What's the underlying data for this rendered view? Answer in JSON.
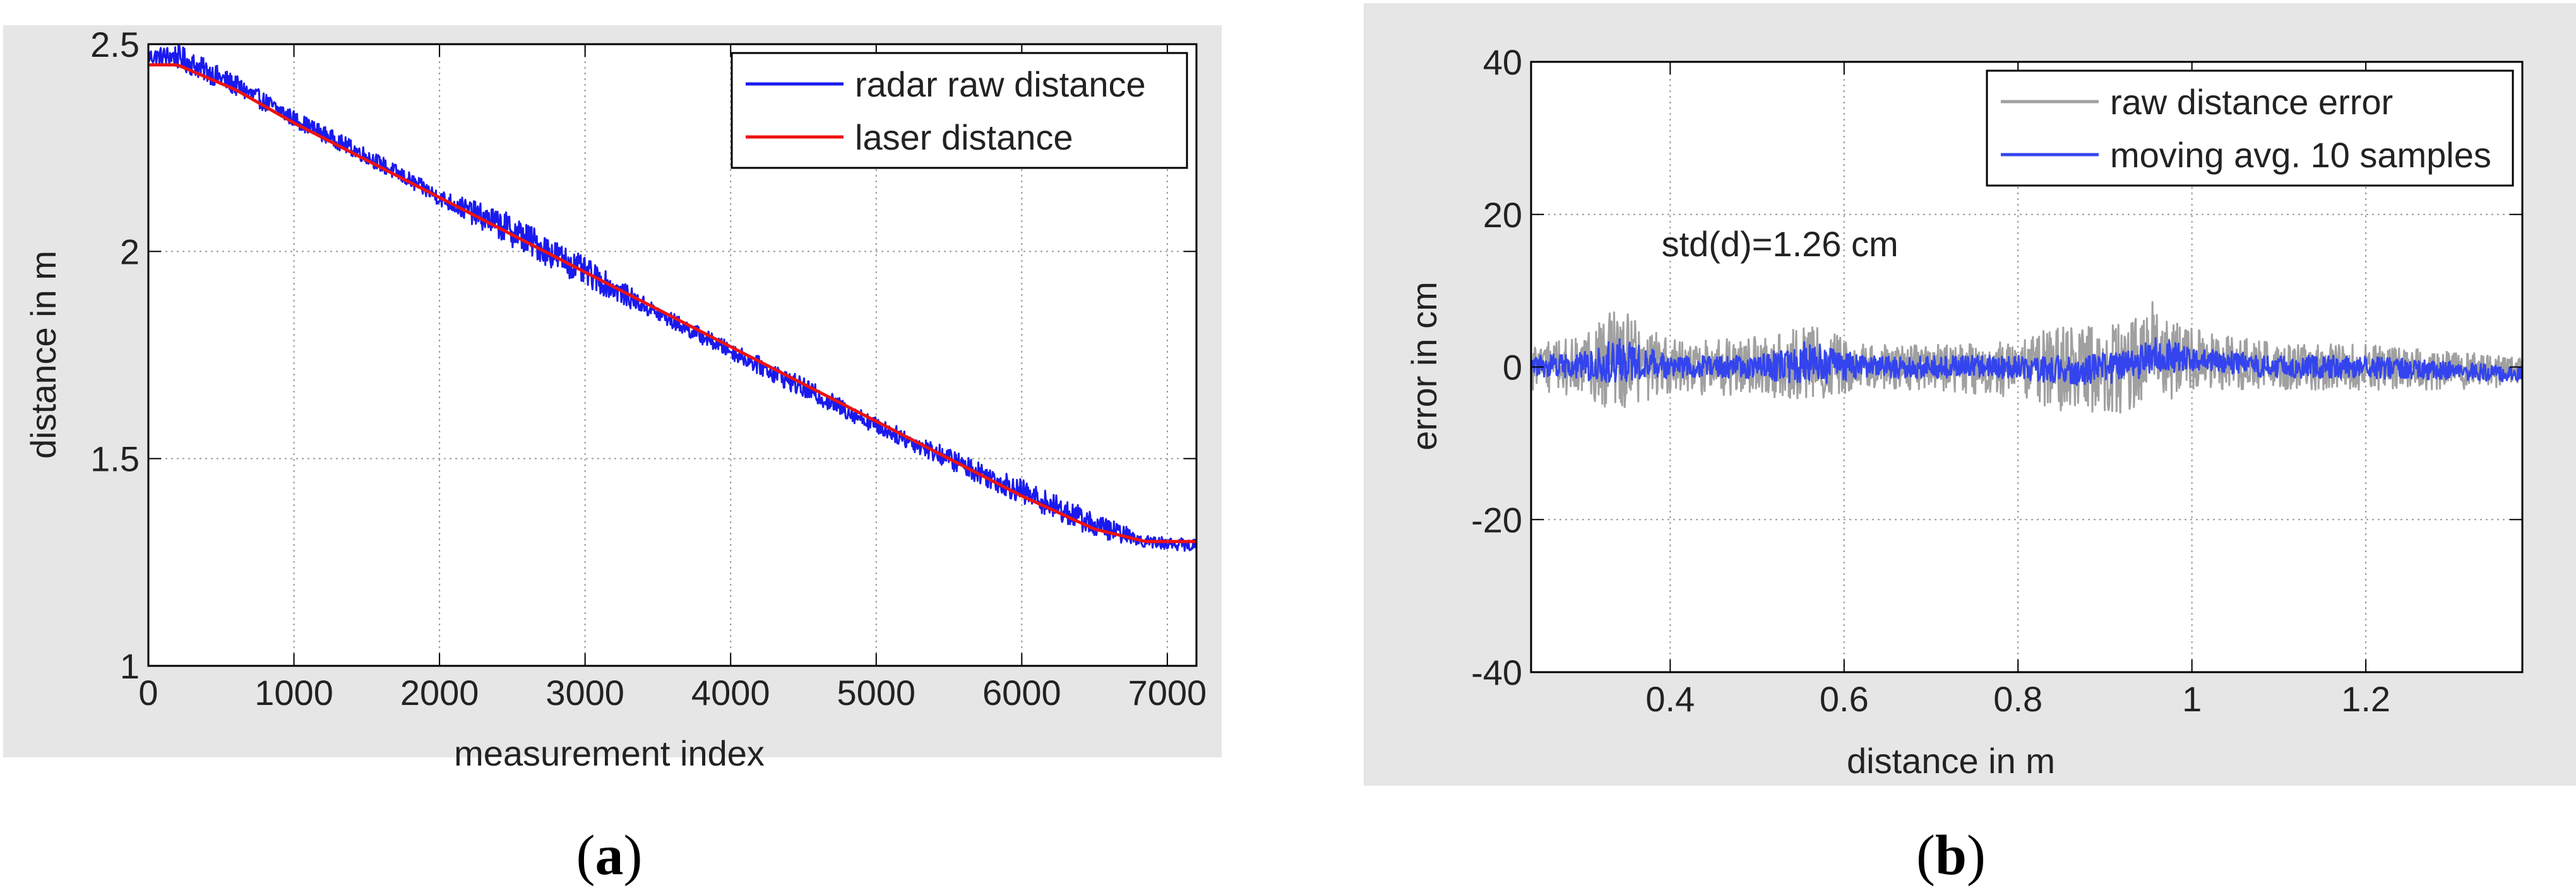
{
  "chart_data": [
    {
      "id": "a",
      "type": "line",
      "panel_label": {
        "open": "(",
        "letter": "a",
        "close": ")"
      },
      "title": "",
      "xlabel": "measurement index",
      "ylabel": "distance in m",
      "xlim": [
        0,
        7200
      ],
      "ylim": [
        1,
        2.5
      ],
      "xticks": [
        0,
        1000,
        2000,
        3000,
        4000,
        5000,
        6000,
        7000
      ],
      "xtick_labels": [
        "0",
        "1000",
        "2000",
        "3000",
        "4000",
        "5000",
        "6000",
        "7000"
      ],
      "yticks": [
        1,
        1.5,
        2,
        2.5
      ],
      "ytick_labels": [
        "1",
        "1.5",
        "2",
        "2.5"
      ],
      "grid": true,
      "legend_position": "top-right",
      "series": [
        {
          "name": "radar raw distance",
          "color": "#1a1aee",
          "kind": "noisy",
          "x": [
            0,
            200,
            600,
            1000,
            1500,
            2000,
            2500,
            3000,
            3500,
            4000,
            4500,
            5000,
            5500,
            6000,
            6500,
            6850,
            7200
          ],
          "y": [
            2.47,
            2.47,
            2.4,
            2.32,
            2.23,
            2.13,
            2.05,
            1.95,
            1.85,
            1.76,
            1.67,
            1.58,
            1.5,
            1.42,
            1.34,
            1.3,
            1.29
          ],
          "noise_amplitude": [
            0.02,
            0.03,
            0.025,
            0.02,
            0.02,
            0.02,
            0.04,
            0.035,
            0.02,
            0.02,
            0.025,
            0.02,
            0.025,
            0.03,
            0.03,
            0.015,
            0.015
          ]
        },
        {
          "name": "laser distance",
          "color": "#ee1111",
          "kind": "line",
          "x": [
            0,
            200,
            600,
            1000,
            1500,
            2000,
            2500,
            3000,
            3500,
            4000,
            4500,
            5000,
            5500,
            6000,
            6500,
            6850,
            7200
          ],
          "y": [
            2.45,
            2.45,
            2.39,
            2.31,
            2.22,
            2.13,
            2.04,
            1.95,
            1.86,
            1.77,
            1.68,
            1.59,
            1.5,
            1.41,
            1.33,
            1.3,
            1.3
          ]
        }
      ]
    },
    {
      "id": "b",
      "type": "line",
      "panel_label": {
        "open": "(",
        "letter": "b",
        "close": ")"
      },
      "title": "",
      "xlabel": "distance in m",
      "ylabel": "error in cm",
      "xlim": [
        0.24,
        1.38
      ],
      "ylim": [
        -40,
        40
      ],
      "xticks": [
        0.4,
        0.6,
        0.8,
        1,
        1.2
      ],
      "xtick_labels": [
        "0.4",
        "0.6",
        "0.8",
        "1",
        "1.2"
      ],
      "yticks": [
        -40,
        -20,
        0,
        20,
        40
      ],
      "ytick_labels": [
        "-40",
        "-20",
        "0",
        "20",
        "40"
      ],
      "grid": true,
      "legend_position": "top-right",
      "annotation": {
        "text": "std(d)=1.26 cm",
        "x": 0.39,
        "y": 14.5
      },
      "series": [
        {
          "name": "raw distance error",
          "color": "#a0a0a0",
          "kind": "noise",
          "x": [
            0.24,
            0.3,
            0.34,
            0.4,
            0.5,
            0.56,
            0.62,
            0.7,
            0.8,
            0.86,
            0.92,
            0.96,
            1.0,
            1.1,
            1.2,
            1.3,
            1.38
          ],
          "center": [
            0,
            0,
            1,
            0,
            0,
            0.5,
            0,
            0,
            0,
            -0.5,
            0,
            2,
            1,
            0,
            0,
            -0.5,
            -0.5
          ],
          "amplitude": [
            3,
            4,
            7,
            3.5,
            4,
            5,
            3,
            3,
            4,
            6,
            6,
            7,
            4,
            3,
            3,
            2.5,
            2
          ]
        },
        {
          "name": "moving avg. 10 samples",
          "color": "#3344ee",
          "kind": "noise",
          "x": [
            0.24,
            0.3,
            0.34,
            0.4,
            0.5,
            0.56,
            0.62,
            0.7,
            0.8,
            0.86,
            0.92,
            0.96,
            1.0,
            1.1,
            1.2,
            1.3,
            1.38
          ],
          "center": [
            0,
            0,
            1,
            0,
            0,
            0.5,
            0,
            0,
            0,
            -0.5,
            0,
            1.5,
            1,
            0,
            0,
            -0.5,
            -1
          ],
          "amplitude": [
            1.5,
            2,
            3,
            1.5,
            1.5,
            3,
            1.5,
            1.5,
            1.5,
            2,
            2,
            2.5,
            1.5,
            1.5,
            1.5,
            1.2,
            1
          ]
        }
      ]
    }
  ]
}
